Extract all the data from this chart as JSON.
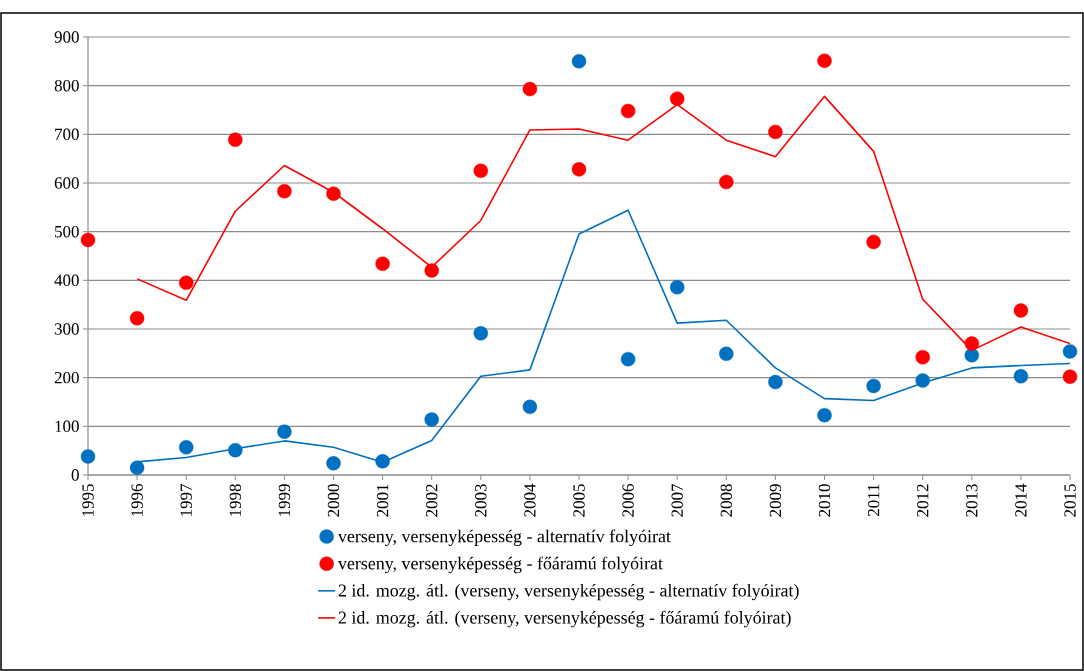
{
  "chart_data": {
    "type": "scatter",
    "categories": [
      "1995",
      "1996",
      "1997",
      "1998",
      "1999",
      "2000",
      "2001",
      "2002",
      "2003",
      "2004",
      "2005",
      "2006",
      "2007",
      "2008",
      "2009",
      "2010",
      "2011",
      "2012",
      "2013",
      "2014",
      "2015"
    ],
    "series": [
      {
        "name": "verseny, versenyképesség - alternatív folyóirat",
        "marker": "circle",
        "color": "#0070c0",
        "values": [
          38,
          15,
          57,
          51,
          89,
          24,
          28,
          114,
          291,
          140,
          850,
          238,
          386,
          249,
          191,
          123,
          183,
          194,
          246,
          203,
          254
        ]
      },
      {
        "name": "verseny, versenyképesség - főáramú folyóirat",
        "marker": "circle",
        "color": "#ff0000",
        "values": [
          483,
          322,
          395,
          689,
          583,
          578,
          434,
          420,
          625,
          793,
          628,
          748,
          773,
          602,
          705,
          851,
          479,
          242,
          270,
          338,
          202
        ]
      },
      {
        "name": "2 id. mozg. átl. (verseny, versenyképesség - alternatív folyóirat)",
        "type": "line",
        "marker": "none",
        "line_style": "solid",
        "color": "#0070c0",
        "values": [
          null,
          27,
          36,
          54,
          70,
          57,
          26,
          71,
          203,
          216,
          495,
          544,
          312,
          318,
          220,
          157,
          153,
          189,
          220,
          225,
          229
        ]
      },
      {
        "name": "2 id. mozg. átl. (verseny, versenyképesség - főáramú folyóirat)",
        "type": "line",
        "marker": "none",
        "line_style": "solid",
        "color": "#ff0000",
        "values": [
          null,
          403,
          359,
          542,
          636,
          581,
          506,
          427,
          523,
          709,
          711,
          688,
          761,
          688,
          654,
          778,
          665,
          361,
          256,
          304,
          270
        ]
      }
    ],
    "ylim": [
      0,
      900
    ],
    "yticks": [
      0,
      100,
      200,
      300,
      400,
      500,
      600,
      700,
      800,
      900
    ],
    "grid": "y",
    "legend": "bottom"
  }
}
